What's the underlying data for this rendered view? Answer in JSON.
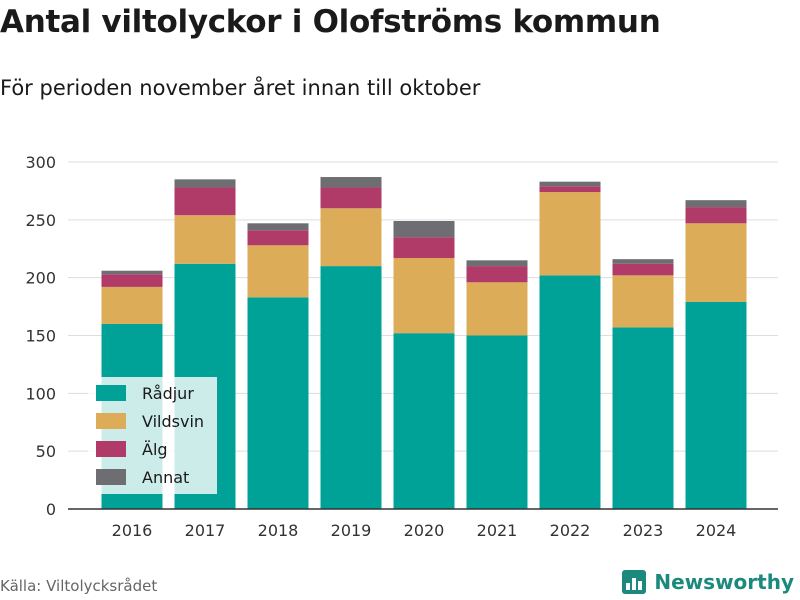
{
  "title": "Antal viltolyckor i Olofströms kommun",
  "subtitle": "För perioden november året innan till oktober",
  "source": "Källa: Viltolycksrådet",
  "brand": "Newsworthy",
  "colors": {
    "Rådjur": "#00a297",
    "Vildsvin": "#dcac58",
    "Älg": "#b03a68",
    "Annat": "#6e6e72",
    "grid": "#dddddd",
    "axis": "#333333",
    "brand": "#1b8a7d"
  },
  "chart_data": {
    "type": "bar",
    "stacked": true,
    "categories": [
      "2016",
      "2017",
      "2018",
      "2019",
      "2020",
      "2021",
      "2022",
      "2023",
      "2024"
    ],
    "series": [
      {
        "name": "Rådjur",
        "values": [
          160,
          212,
          183,
          210,
          152,
          150,
          202,
          157,
          179
        ]
      },
      {
        "name": "Vildsvin",
        "values": [
          32,
          42,
          45,
          50,
          65,
          46,
          72,
          45,
          68
        ]
      },
      {
        "name": "Älg",
        "values": [
          11,
          24,
          13,
          18,
          18,
          14,
          5,
          10,
          14
        ]
      },
      {
        "name": "Annat",
        "values": [
          3,
          7,
          6,
          9,
          14,
          5,
          4,
          4,
          6
        ]
      }
    ],
    "yticks": [
      0,
      50,
      100,
      150,
      200,
      250,
      300
    ],
    "ylim": [
      0,
      300
    ],
    "grid": true,
    "legend_position": "bottom-left"
  }
}
